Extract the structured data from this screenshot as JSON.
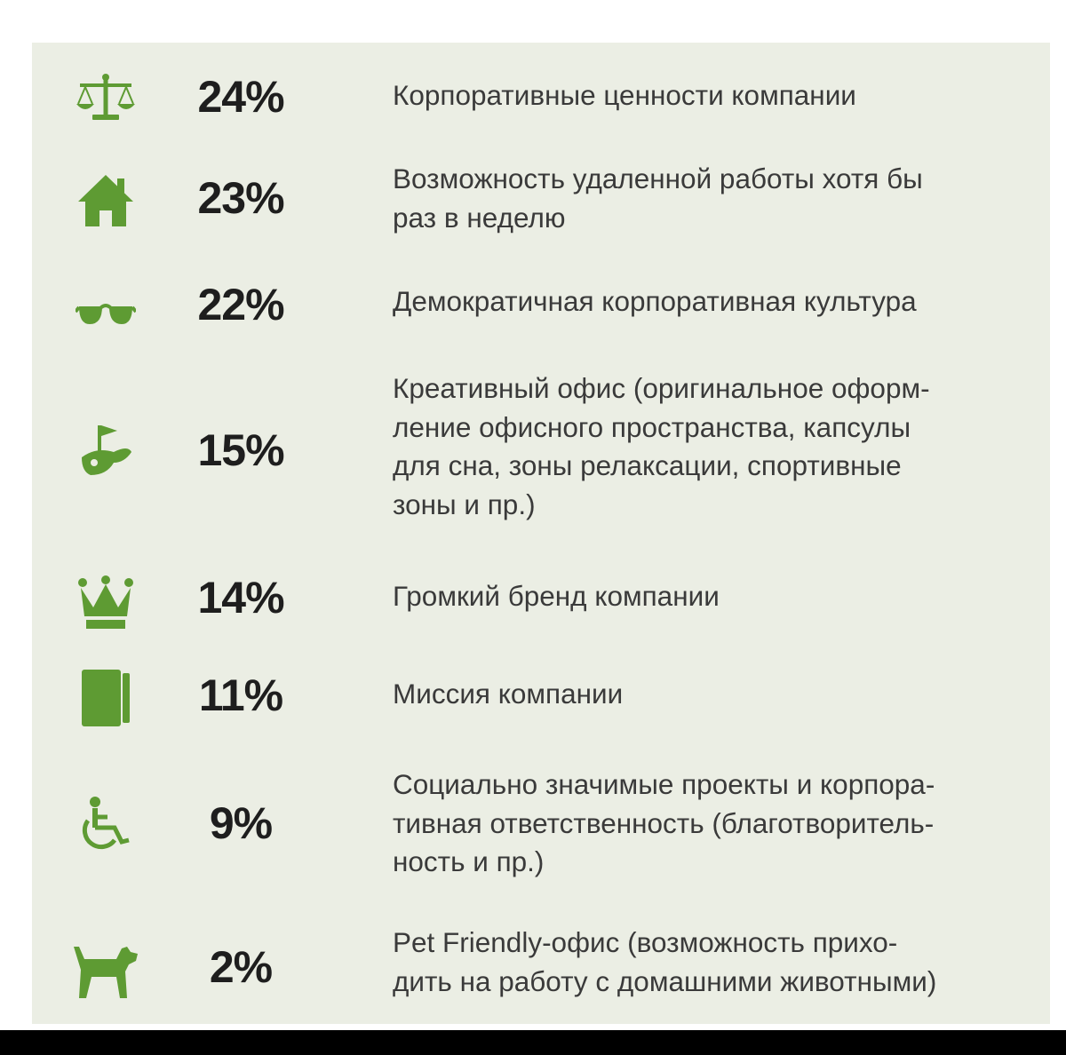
{
  "colors": {
    "icon": "#5e9b33",
    "panel_background": "#ebeee4",
    "percent_text": "#1e1e1e",
    "description_text": "#3a3a3a"
  },
  "chart_data": {
    "type": "table",
    "columns": [
      "icon",
      "value",
      "label"
    ],
    "rows": [
      {
        "icon": "scales-icon",
        "value": 24,
        "value_text": "24%",
        "label": "Корпоративные ценности компании"
      },
      {
        "icon": "house-icon",
        "value": 23,
        "value_text": "23%",
        "label": "Возможность удаленной работы хотя бы\nраз в неделю"
      },
      {
        "icon": "sunglasses-icon",
        "value": 22,
        "value_text": "22%",
        "label": "Демократичная корпоративная культура"
      },
      {
        "icon": "golf-icon",
        "value": 15,
        "value_text": "15%",
        "label": "Креативный офис (оригинальное оформ-\nление офисного пространства, капсулы\nдля сна, зоны релаксации, спортивные\nзоны и пр.)"
      },
      {
        "icon": "crown-icon",
        "value": 14,
        "value_text": "14%",
        "label": "Громкий бренд компании"
      },
      {
        "icon": "book-icon",
        "value": 11,
        "value_text": "11%",
        "label": "Миссия компании"
      },
      {
        "icon": "wheelchair-icon",
        "value": 9,
        "value_text": "9%",
        "label": "Социально значимые проекты и корпора-\nтивная ответственность (благотворитель-\nность и пр.)"
      },
      {
        "icon": "dog-icon",
        "value": 2,
        "value_text": "2%",
        "label": "Pet Friendly-офис (возможность прихо-\nдить на работу с домашними животными)"
      }
    ]
  }
}
